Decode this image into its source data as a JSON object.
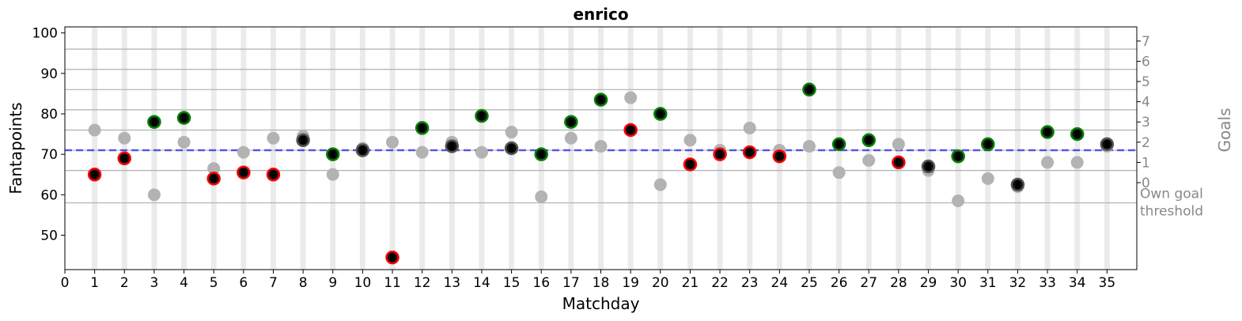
{
  "chart_data": {
    "type": "scatter",
    "title": "enrico",
    "xlabel": "Matchday",
    "ylabel": "Fantapoints",
    "right_label": "Goals",
    "xlim": [
      0,
      36
    ],
    "ylim": [
      41.5,
      101.5
    ],
    "x_ticks": [
      0,
      1,
      2,
      3,
      4,
      5,
      6,
      7,
      8,
      9,
      10,
      11,
      12,
      13,
      14,
      15,
      16,
      17,
      18,
      19,
      20,
      21,
      22,
      23,
      24,
      25,
      26,
      27,
      28,
      29,
      30,
      31,
      32,
      33,
      34,
      35
    ],
    "y_ticks": [
      50,
      60,
      70,
      80,
      90,
      100
    ],
    "mean_line": 71,
    "goal_levels": [
      {
        "label": "Own goal threshold",
        "lines": [
          "Own goal",
          "threshold"
        ],
        "y": 58
      },
      {
        "label": "0",
        "y": 66
      },
      {
        "label": "1",
        "y": 71
      },
      {
        "label": "2",
        "y": 76
      },
      {
        "label": "3",
        "y": 81
      },
      {
        "label": "4",
        "y": 86
      },
      {
        "label": "5",
        "y": 91
      },
      {
        "label": "6",
        "y": 96
      }
    ],
    "goal_tick_labels": [
      {
        "label": "0",
        "y": 63
      },
      {
        "label": "1",
        "y": 68
      },
      {
        "label": "2",
        "y": 73
      },
      {
        "label": "3",
        "y": 78
      },
      {
        "label": "4",
        "y": 83
      },
      {
        "label": "5",
        "y": 88
      },
      {
        "label": "6",
        "y": 93
      },
      {
        "label": "7",
        "y": 98
      }
    ],
    "colors": {
      "win": "#008000",
      "loss": "#ff0000",
      "draw": "#555555",
      "player_point": "#111111",
      "opponent_point": "#b3b3b3",
      "mean_line": "#0000ff",
      "matchday_band": "#ebebeb",
      "grid": "#b0b0b0"
    },
    "series": [
      {
        "name": "player",
        "points": [
          {
            "x": 1,
            "y": 65,
            "result": "loss"
          },
          {
            "x": 2,
            "y": 69,
            "result": "loss"
          },
          {
            "x": 3,
            "y": 78,
            "result": "win"
          },
          {
            "x": 4,
            "y": 79,
            "result": "win"
          },
          {
            "x": 5,
            "y": 64,
            "result": "loss"
          },
          {
            "x": 6,
            "y": 65.5,
            "result": "loss"
          },
          {
            "x": 7,
            "y": 65,
            "result": "loss"
          },
          {
            "x": 8,
            "y": 73.5,
            "result": "draw"
          },
          {
            "x": 9,
            "y": 70,
            "result": "win"
          },
          {
            "x": 10,
            "y": 71,
            "result": "draw"
          },
          {
            "x": 11,
            "y": 44.5,
            "result": "loss"
          },
          {
            "x": 12,
            "y": 76.5,
            "result": "win"
          },
          {
            "x": 13,
            "y": 72,
            "result": "draw"
          },
          {
            "x": 14,
            "y": 79.5,
            "result": "win"
          },
          {
            "x": 15,
            "y": 71.5,
            "result": "draw"
          },
          {
            "x": 16,
            "y": 70,
            "result": "win"
          },
          {
            "x": 17,
            "y": 78,
            "result": "win"
          },
          {
            "x": 18,
            "y": 83.5,
            "result": "win"
          },
          {
            "x": 19,
            "y": 76,
            "result": "loss"
          },
          {
            "x": 20,
            "y": 80,
            "result": "win"
          },
          {
            "x": 21,
            "y": 67.5,
            "result": "loss"
          },
          {
            "x": 22,
            "y": 70,
            "result": "loss"
          },
          {
            "x": 23,
            "y": 70.5,
            "result": "loss"
          },
          {
            "x": 24,
            "y": 69.5,
            "result": "loss"
          },
          {
            "x": 25,
            "y": 86,
            "result": "win"
          },
          {
            "x": 26,
            "y": 72.5,
            "result": "win"
          },
          {
            "x": 27,
            "y": 73.5,
            "result": "win"
          },
          {
            "x": 28,
            "y": 68,
            "result": "loss"
          },
          {
            "x": 29,
            "y": 67,
            "result": "draw"
          },
          {
            "x": 30,
            "y": 69.5,
            "result": "win"
          },
          {
            "x": 31,
            "y": 72.5,
            "result": "win"
          },
          {
            "x": 32,
            "y": 62.5,
            "result": "draw"
          },
          {
            "x": 33,
            "y": 75.5,
            "result": "win"
          },
          {
            "x": 34,
            "y": 75,
            "result": "win"
          },
          {
            "x": 35,
            "y": 72.5,
            "result": "draw"
          }
        ]
      },
      {
        "name": "opponent",
        "points": [
          {
            "x": 1,
            "y": 76
          },
          {
            "x": 2,
            "y": 74
          },
          {
            "x": 3,
            "y": 60
          },
          {
            "x": 4,
            "y": 73
          },
          {
            "x": 5,
            "y": 66.5
          },
          {
            "x": 6,
            "y": 70.5
          },
          {
            "x": 7,
            "y": 74
          },
          {
            "x": 8,
            "y": 74.5
          },
          {
            "x": 9,
            "y": 65
          },
          {
            "x": 10,
            "y": 71.5
          },
          {
            "x": 11,
            "y": 73
          },
          {
            "x": 12,
            "y": 70.5
          },
          {
            "x": 13,
            "y": 73
          },
          {
            "x": 14,
            "y": 70.5
          },
          {
            "x": 15,
            "y": 75.5
          },
          {
            "x": 16,
            "y": 59.5
          },
          {
            "x": 17,
            "y": 74
          },
          {
            "x": 18,
            "y": 72
          },
          {
            "x": 19,
            "y": 84
          },
          {
            "x": 20,
            "y": 62.5
          },
          {
            "x": 21,
            "y": 73.5
          },
          {
            "x": 22,
            "y": 71
          },
          {
            "x": 23,
            "y": 76.5
          },
          {
            "x": 24,
            "y": 71
          },
          {
            "x": 25,
            "y": 72
          },
          {
            "x": 26,
            "y": 65.5
          },
          {
            "x": 27,
            "y": 68.5
          },
          {
            "x": 28,
            "y": 72.5
          },
          {
            "x": 29,
            "y": 66
          },
          {
            "x": 30,
            "y": 58.5
          },
          {
            "x": 31,
            "y": 64
          },
          {
            "x": 32,
            "y": 62
          },
          {
            "x": 33,
            "y": 68
          },
          {
            "x": 34,
            "y": 68
          },
          {
            "x": 35,
            "y": 72
          }
        ]
      }
    ]
  }
}
